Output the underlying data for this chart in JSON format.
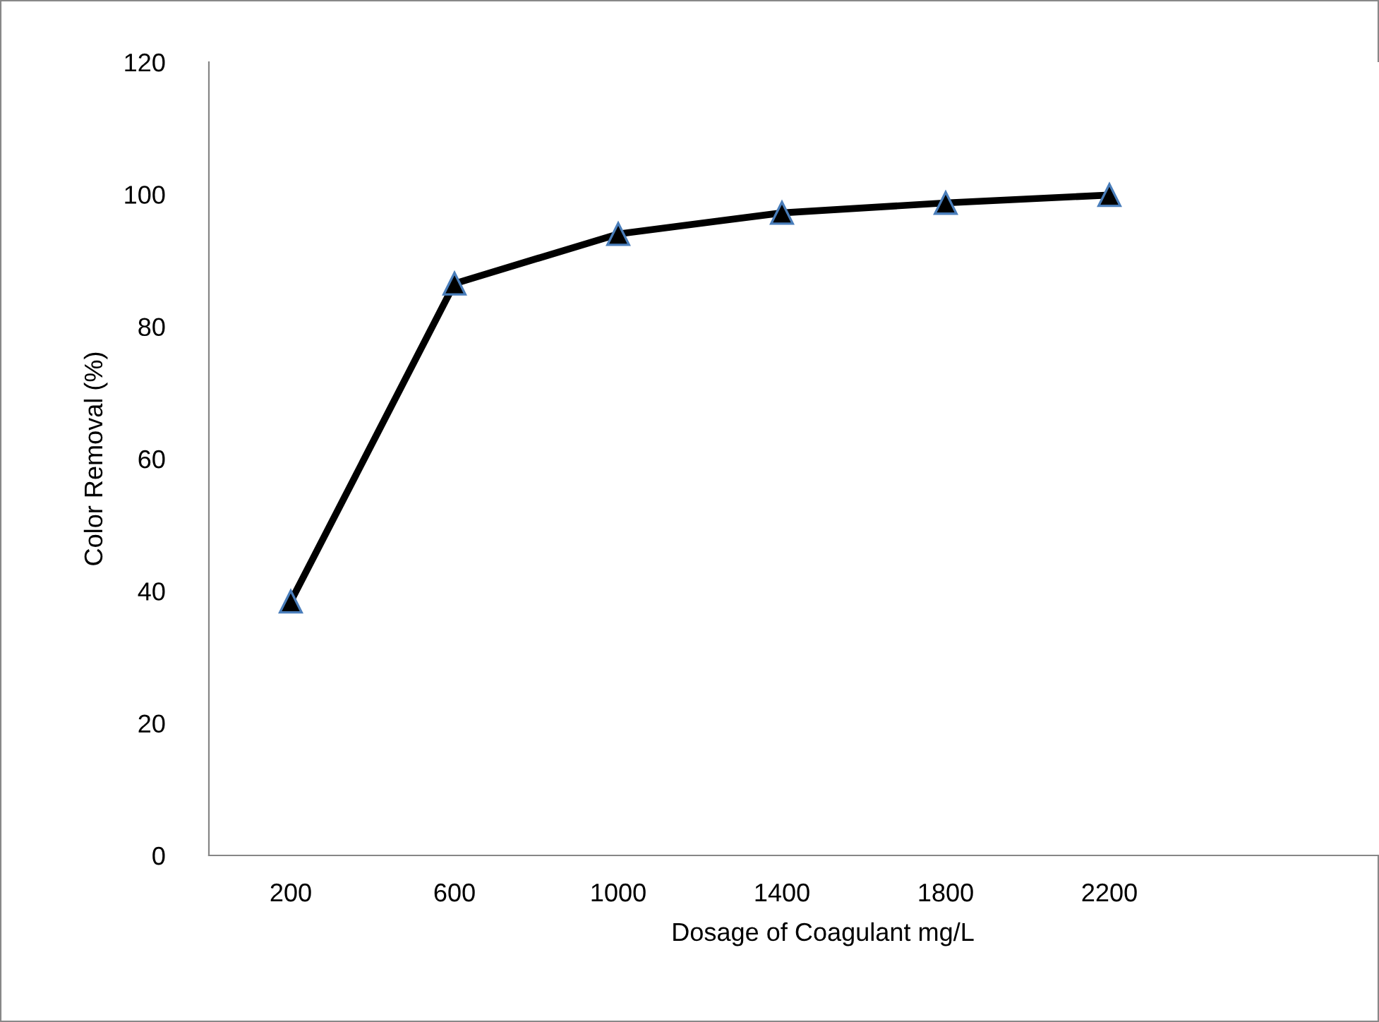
{
  "chart_data": {
    "type": "line",
    "xlabel": "Dosage of Coagulant mg/L",
    "ylabel": "Color Removal (%)",
    "x": [
      200,
      600,
      1000,
      1400,
      1800,
      2200
    ],
    "series": [
      {
        "color": "#000000",
        "values": [
          38.4,
          86.5,
          94,
          97.2,
          98.7,
          99.9
        ]
      }
    ],
    "xlim": [
      0,
      3000
    ],
    "xticks": [
      200,
      600,
      1000,
      1400,
      1800,
      2200
    ],
    "ylim": [
      0,
      120
    ],
    "yticks": [
      0,
      20,
      40,
      60,
      80,
      100,
      120
    ],
    "grid": false,
    "marker": "triangle",
    "line_style": "solid"
  }
}
